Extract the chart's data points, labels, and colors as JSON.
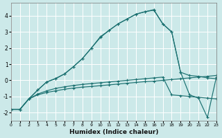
{
  "xlabel": "Humidex (Indice chaleur)",
  "bg_color": "#cce9e9",
  "grid_color": "#ffffff",
  "line_color": "#1a7070",
  "xlim": [
    0,
    23
  ],
  "ylim": [
    -2.5,
    4.8
  ],
  "x_ticks": [
    0,
    1,
    2,
    3,
    4,
    5,
    6,
    7,
    8,
    9,
    10,
    11,
    12,
    13,
    14,
    15,
    16,
    17,
    18,
    19,
    20,
    21,
    22,
    23
  ],
  "y_ticks": [
    -2,
    -1,
    0,
    1,
    2,
    3,
    4
  ],
  "curves": [
    {
      "x": [
        0,
        1,
        2,
        3,
        4,
        5,
        6,
        7,
        8,
        9,
        10,
        11,
        12,
        13,
        14,
        15,
        16,
        17,
        18,
        19,
        20,
        21,
        22,
        23
      ],
      "y": [
        -1.8,
        -1.8,
        -1.15,
        -0.9,
        -0.75,
        -0.65,
        -0.55,
        -0.48,
        -0.42,
        -0.38,
        -0.33,
        -0.28,
        -0.23,
        -0.18,
        -0.13,
        -0.08,
        -0.05,
        0.0,
        0.05,
        0.1,
        0.15,
        0.2,
        0.25,
        0.3
      ]
    },
    {
      "x": [
        0,
        1,
        2,
        3,
        4,
        5,
        6,
        7,
        8,
        9,
        10,
        11,
        12,
        13,
        14,
        15,
        16,
        17,
        18,
        19,
        20,
        21,
        22,
        23
      ],
      "y": [
        -1.8,
        -1.8,
        -1.15,
        -0.85,
        -0.65,
        -0.5,
        -0.4,
        -0.32,
        -0.25,
        -0.2,
        -0.15,
        -0.1,
        -0.05,
        0.0,
        0.05,
        0.1,
        0.15,
        0.2,
        -0.9,
        -0.95,
        -1.0,
        -1.05,
        -1.1,
        -1.15
      ]
    },
    {
      "x": [
        0,
        1,
        2,
        3,
        4,
        5,
        6,
        7,
        8,
        9,
        10,
        11,
        12,
        13,
        14,
        15,
        16,
        17,
        18,
        19,
        20,
        21,
        22,
        23
      ],
      "y": [
        -1.8,
        -1.8,
        -1.15,
        -0.6,
        -0.1,
        0.1,
        0.4,
        0.85,
        1.35,
        2.0,
        2.7,
        3.1,
        3.5,
        3.8,
        4.1,
        4.25,
        4.35,
        3.5,
        3.0,
        0.5,
        0.3,
        0.25,
        0.15,
        0.1
      ]
    },
    {
      "x": [
        0,
        1,
        2,
        3,
        4,
        5,
        6,
        7,
        8,
        9,
        10,
        11,
        12,
        13,
        14,
        15,
        16,
        17,
        18,
        19,
        20,
        21,
        22,
        23
      ],
      "y": [
        -1.8,
        -1.8,
        -1.15,
        -0.6,
        -0.1,
        0.12,
        0.4,
        0.85,
        1.35,
        2.0,
        2.65,
        3.1,
        3.5,
        3.8,
        4.1,
        4.25,
        4.38,
        3.5,
        3.0,
        0.5,
        -0.9,
        -1.1,
        -2.3,
        0.2
      ]
    }
  ]
}
